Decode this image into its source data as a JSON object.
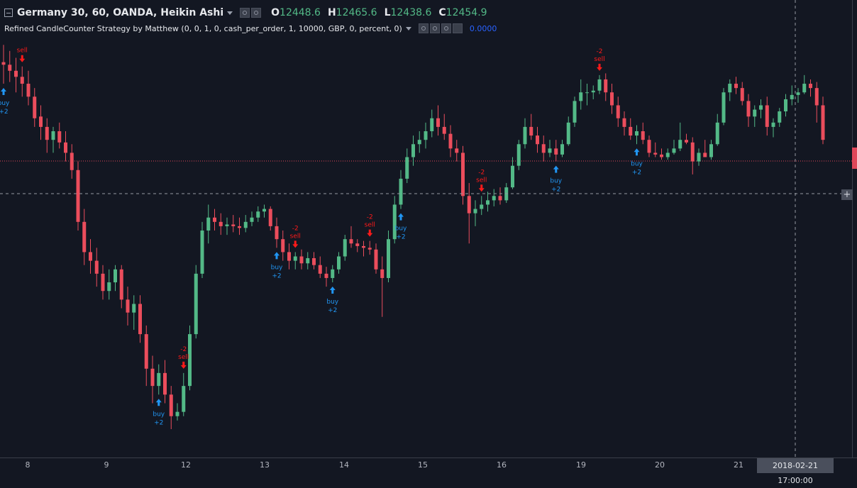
{
  "header": {
    "symbol": "Germany 30, 60, OANDA, Heikin Ashi",
    "ohlc": [
      {
        "key": "O",
        "value": "12448.6"
      },
      {
        "key": "H",
        "value": "12465.6"
      },
      {
        "key": "L",
        "value": "12438.6"
      },
      {
        "key": "C",
        "value": "12454.9"
      }
    ],
    "study_title": "Refined CandleCounter Strategy by Matthew (0, 0, 1, 0, cash_per_order, 1, 10000, GBP, 0, percent, 0)",
    "study_value": "0.0000"
  },
  "time_axis": {
    "ticks": [
      "8",
      "9",
      "12",
      "13",
      "14",
      "15",
      "16",
      "19",
      "20",
      "21"
    ],
    "cursor_label": "2018-02-21 17:00:00"
  },
  "colors": {
    "background": "#131722",
    "up": "#53b987",
    "down": "#eb4d5c",
    "buy_signal": "#2196f3",
    "sell_signal": "#ff1a1a",
    "current_price_line": "#e0475a"
  },
  "chart_data": {
    "type": "candlestick",
    "style": "Heikin Ashi",
    "ylim": [
      12010,
      12470
    ],
    "candles": [
      {
        "o": 12435,
        "h": 12455,
        "l": 12410,
        "c": 12432
      },
      {
        "o": 12432,
        "h": 12448,
        "l": 12412,
        "c": 12425
      },
      {
        "o": 12425,
        "h": 12440,
        "l": 12400,
        "c": 12418
      },
      {
        "o": 12418,
        "h": 12430,
        "l": 12395,
        "c": 12410
      },
      {
        "o": 12410,
        "h": 12425,
        "l": 12385,
        "c": 12395
      },
      {
        "o": 12395,
        "h": 12405,
        "l": 12360,
        "c": 12370
      },
      {
        "o": 12372,
        "h": 12385,
        "l": 12345,
        "c": 12360
      },
      {
        "o": 12360,
        "h": 12370,
        "l": 12330,
        "c": 12345
      },
      {
        "o": 12345,
        "h": 12360,
        "l": 12330,
        "c": 12355
      },
      {
        "o": 12355,
        "h": 12365,
        "l": 12335,
        "c": 12342
      },
      {
        "o": 12342,
        "h": 12355,
        "l": 12320,
        "c": 12330
      },
      {
        "o": 12330,
        "h": 12340,
        "l": 12300,
        "c": 12310
      },
      {
        "o": 12310,
        "h": 12320,
        "l": 12240,
        "c": 12250
      },
      {
        "o": 12250,
        "h": 12265,
        "l": 12200,
        "c": 12215
      },
      {
        "o": 12215,
        "h": 12230,
        "l": 12190,
        "c": 12205
      },
      {
        "o": 12205,
        "h": 12220,
        "l": 12175,
        "c": 12190
      },
      {
        "o": 12190,
        "h": 12200,
        "l": 12160,
        "c": 12170
      },
      {
        "o": 12170,
        "h": 12195,
        "l": 12160,
        "c": 12180
      },
      {
        "o": 12180,
        "h": 12200,
        "l": 12170,
        "c": 12195
      },
      {
        "o": 12195,
        "h": 12200,
        "l": 12150,
        "c": 12160
      },
      {
        "o": 12160,
        "h": 12175,
        "l": 12130,
        "c": 12145
      },
      {
        "o": 12145,
        "h": 12165,
        "l": 12125,
        "c": 12155
      },
      {
        "o": 12155,
        "h": 12165,
        "l": 12110,
        "c": 12120
      },
      {
        "o": 12120,
        "h": 12130,
        "l": 12060,
        "c": 12080
      },
      {
        "o": 12080,
        "h": 12095,
        "l": 12040,
        "c": 12060
      },
      {
        "o": 12060,
        "h": 12085,
        "l": 12050,
        "c": 12075
      },
      {
        "o": 12075,
        "h": 12090,
        "l": 12040,
        "c": 12050
      },
      {
        "o": 12050,
        "h": 12060,
        "l": 12010,
        "c": 12025
      },
      {
        "o": 12025,
        "h": 12040,
        "l": 12020,
        "c": 12030
      },
      {
        "o": 12030,
        "h": 12075,
        "l": 12025,
        "c": 12060
      },
      {
        "o": 12060,
        "h": 12130,
        "l": 12055,
        "c": 12120
      },
      {
        "o": 12120,
        "h": 12200,
        "l": 12115,
        "c": 12190
      },
      {
        "o": 12190,
        "h": 12250,
        "l": 12185,
        "c": 12240
      },
      {
        "o": 12240,
        "h": 12270,
        "l": 12225,
        "c": 12255
      },
      {
        "o": 12255,
        "h": 12265,
        "l": 12240,
        "c": 12250
      },
      {
        "o": 12250,
        "h": 12260,
        "l": 12235,
        "c": 12245
      },
      {
        "o": 12245,
        "h": 12255,
        "l": 12235,
        "c": 12247
      },
      {
        "o": 12247,
        "h": 12258,
        "l": 12238,
        "c": 12245
      },
      {
        "o": 12245,
        "h": 12255,
        "l": 12235,
        "c": 12243
      },
      {
        "o": 12243,
        "h": 12258,
        "l": 12238,
        "c": 12250
      },
      {
        "o": 12250,
        "h": 12262,
        "l": 12245,
        "c": 12255
      },
      {
        "o": 12255,
        "h": 12268,
        "l": 12250,
        "c": 12262
      },
      {
        "o": 12262,
        "h": 12270,
        "l": 12255,
        "c": 12265
      },
      {
        "o": 12265,
        "h": 12268,
        "l": 12240,
        "c": 12245
      },
      {
        "o": 12245,
        "h": 12255,
        "l": 12220,
        "c": 12230
      },
      {
        "o": 12230,
        "h": 12240,
        "l": 12205,
        "c": 12215
      },
      {
        "o": 12215,
        "h": 12225,
        "l": 12195,
        "c": 12205
      },
      {
        "o": 12205,
        "h": 12215,
        "l": 12195,
        "c": 12210
      },
      {
        "o": 12210,
        "h": 12218,
        "l": 12195,
        "c": 12202
      },
      {
        "o": 12202,
        "h": 12215,
        "l": 12195,
        "c": 12208
      },
      {
        "o": 12208,
        "h": 12215,
        "l": 12195,
        "c": 12200
      },
      {
        "o": 12200,
        "h": 12210,
        "l": 12185,
        "c": 12190
      },
      {
        "o": 12190,
        "h": 12198,
        "l": 12175,
        "c": 12185
      },
      {
        "o": 12185,
        "h": 12200,
        "l": 12180,
        "c": 12195
      },
      {
        "o": 12195,
        "h": 12215,
        "l": 12190,
        "c": 12210
      },
      {
        "o": 12210,
        "h": 12235,
        "l": 12205,
        "c": 12230
      },
      {
        "o": 12230,
        "h": 12245,
        "l": 12220,
        "c": 12225
      },
      {
        "o": 12225,
        "h": 12230,
        "l": 12215,
        "c": 12222
      },
      {
        "o": 12222,
        "h": 12228,
        "l": 12210,
        "c": 12220
      },
      {
        "o": 12220,
        "h": 12228,
        "l": 12212,
        "c": 12218
      },
      {
        "o": 12218,
        "h": 12225,
        "l": 12190,
        "c": 12195
      },
      {
        "o": 12195,
        "h": 12210,
        "l": 12140,
        "c": 12185
      },
      {
        "o": 12185,
        "h": 12240,
        "l": 12180,
        "c": 12230
      },
      {
        "o": 12230,
        "h": 12280,
        "l": 12225,
        "c": 12270
      },
      {
        "o": 12270,
        "h": 12310,
        "l": 12265,
        "c": 12300
      },
      {
        "o": 12300,
        "h": 12335,
        "l": 12295,
        "c": 12325
      },
      {
        "o": 12325,
        "h": 12350,
        "l": 12315,
        "c": 12340
      },
      {
        "o": 12340,
        "h": 12355,
        "l": 12330,
        "c": 12345
      },
      {
        "o": 12345,
        "h": 12365,
        "l": 12335,
        "c": 12355
      },
      {
        "o": 12355,
        "h": 12380,
        "l": 12348,
        "c": 12370
      },
      {
        "o": 12370,
        "h": 12385,
        "l": 12350,
        "c": 12360
      },
      {
        "o": 12360,
        "h": 12375,
        "l": 12345,
        "c": 12352
      },
      {
        "o": 12352,
        "h": 12362,
        "l": 12325,
        "c": 12335
      },
      {
        "o": 12335,
        "h": 12345,
        "l": 12320,
        "c": 12330
      },
      {
        "o": 12330,
        "h": 12338,
        "l": 12270,
        "c": 12280
      },
      {
        "o": 12280,
        "h": 12295,
        "l": 12225,
        "c": 12260
      },
      {
        "o": 12260,
        "h": 12275,
        "l": 12245,
        "c": 12265
      },
      {
        "o": 12265,
        "h": 12280,
        "l": 12258,
        "c": 12270
      },
      {
        "o": 12270,
        "h": 12285,
        "l": 12262,
        "c": 12275
      },
      {
        "o": 12275,
        "h": 12288,
        "l": 12268,
        "c": 12280
      },
      {
        "o": 12280,
        "h": 12290,
        "l": 12270,
        "c": 12275
      },
      {
        "o": 12275,
        "h": 12295,
        "l": 12272,
        "c": 12290
      },
      {
        "o": 12290,
        "h": 12325,
        "l": 12288,
        "c": 12315
      },
      {
        "o": 12315,
        "h": 12345,
        "l": 12310,
        "c": 12340
      },
      {
        "o": 12340,
        "h": 12370,
        "l": 12335,
        "c": 12360
      },
      {
        "o": 12360,
        "h": 12375,
        "l": 12345,
        "c": 12350
      },
      {
        "o": 12350,
        "h": 12360,
        "l": 12330,
        "c": 12340
      },
      {
        "o": 12340,
        "h": 12350,
        "l": 12320,
        "c": 12330
      },
      {
        "o": 12330,
        "h": 12345,
        "l": 12325,
        "c": 12335
      },
      {
        "o": 12335,
        "h": 12345,
        "l": 12320,
        "c": 12328
      },
      {
        "o": 12328,
        "h": 12345,
        "l": 12325,
        "c": 12340
      },
      {
        "o": 12340,
        "h": 12372,
        "l": 12338,
        "c": 12365
      },
      {
        "o": 12365,
        "h": 12395,
        "l": 12360,
        "c": 12390
      },
      {
        "o": 12390,
        "h": 12415,
        "l": 12380,
        "c": 12400
      },
      {
        "o": 12400,
        "h": 12410,
        "l": 12385,
        "c": 12400
      },
      {
        "o": 12400,
        "h": 12408,
        "l": 12392,
        "c": 12402
      },
      {
        "o": 12402,
        "h": 12420,
        "l": 12398,
        "c": 12415
      },
      {
        "o": 12415,
        "h": 12422,
        "l": 12390,
        "c": 12400
      },
      {
        "o": 12400,
        "h": 12410,
        "l": 12375,
        "c": 12385
      },
      {
        "o": 12385,
        "h": 12395,
        "l": 12360,
        "c": 12370
      },
      {
        "o": 12370,
        "h": 12378,
        "l": 12350,
        "c": 12360
      },
      {
        "o": 12360,
        "h": 12370,
        "l": 12345,
        "c": 12350
      },
      {
        "o": 12350,
        "h": 12362,
        "l": 12340,
        "c": 12355
      },
      {
        "o": 12355,
        "h": 12365,
        "l": 12340,
        "c": 12345
      },
      {
        "o": 12345,
        "h": 12350,
        "l": 12325,
        "c": 12330
      },
      {
        "o": 12330,
        "h": 12342,
        "l": 12325,
        "c": 12328
      },
      {
        "o": 12328,
        "h": 12335,
        "l": 12322,
        "c": 12325
      },
      {
        "o": 12325,
        "h": 12335,
        "l": 12322,
        "c": 12330
      },
      {
        "o": 12330,
        "h": 12345,
        "l": 12328,
        "c": 12335
      },
      {
        "o": 12335,
        "h": 12365,
        "l": 12332,
        "c": 12345
      },
      {
        "o": 12345,
        "h": 12352,
        "l": 12340,
        "c": 12342
      },
      {
        "o": 12342,
        "h": 12348,
        "l": 12305,
        "c": 12320
      },
      {
        "o": 12320,
        "h": 12335,
        "l": 12315,
        "c": 12330
      },
      {
        "o": 12330,
        "h": 12345,
        "l": 12325,
        "c": 12325
      },
      {
        "o": 12325,
        "h": 12345,
        "l": 12322,
        "c": 12340
      },
      {
        "o": 12340,
        "h": 12375,
        "l": 12338,
        "c": 12365
      },
      {
        "o": 12365,
        "h": 12405,
        "l": 12362,
        "c": 12400
      },
      {
        "o": 12400,
        "h": 12415,
        "l": 12390,
        "c": 12410
      },
      {
        "o": 12410,
        "h": 12418,
        "l": 12398,
        "c": 12405
      },
      {
        "o": 12405,
        "h": 12412,
        "l": 12385,
        "c": 12390
      },
      {
        "o": 12390,
        "h": 12398,
        "l": 12360,
        "c": 12372
      },
      {
        "o": 12372,
        "h": 12385,
        "l": 12360,
        "c": 12380
      },
      {
        "o": 12380,
        "h": 12392,
        "l": 12370,
        "c": 12385
      },
      {
        "o": 12385,
        "h": 12395,
        "l": 12350,
        "c": 12360
      },
      {
        "o": 12360,
        "h": 12370,
        "l": 12348,
        "c": 12365
      },
      {
        "o": 12365,
        "h": 12382,
        "l": 12360,
        "c": 12378
      },
      {
        "o": 12378,
        "h": 12398,
        "l": 12372,
        "c": 12392
      },
      {
        "o": 12392,
        "h": 12408,
        "l": 12385,
        "c": 12397
      },
      {
        "o": 12397,
        "h": 12405,
        "l": 12388,
        "c": 12400
      },
      {
        "o": 12400,
        "h": 12420,
        "l": 12398,
        "c": 12410
      },
      {
        "o": 12410,
        "h": 12415,
        "l": 12395,
        "c": 12405
      },
      {
        "o": 12405,
        "h": 12412,
        "l": 12365,
        "c": 12385
      },
      {
        "o": 12385,
        "h": 12395,
        "l": 12340,
        "c": 12345
      }
    ],
    "signals": [
      {
        "type": "buy",
        "label": "buy",
        "qty": "+2",
        "index": 0
      },
      {
        "type": "sell",
        "label": "sell",
        "qty": "",
        "index": 3
      },
      {
        "type": "sell",
        "label": "sell",
        "qty": "-2",
        "index": 29
      },
      {
        "type": "buy",
        "label": "buy",
        "qty": "+2",
        "index": 25
      },
      {
        "type": "buy",
        "label": "buy",
        "qty": "+2",
        "index": 44
      },
      {
        "type": "sell",
        "label": "sell",
        "qty": "-2",
        "index": 47
      },
      {
        "type": "buy",
        "label": "buy",
        "qty": "+2",
        "index": 53
      },
      {
        "type": "sell",
        "label": "sell",
        "qty": "-2",
        "index": 59
      },
      {
        "type": "buy",
        "label": "buy",
        "qty": "+2",
        "index": 64
      },
      {
        "type": "sell",
        "label": "sell",
        "qty": "-2",
        "index": 77
      },
      {
        "type": "buy",
        "label": "buy",
        "qty": "+2",
        "index": 89
      },
      {
        "type": "sell",
        "label": "sell",
        "qty": "-2",
        "index": 96
      },
      {
        "type": "buy",
        "label": "buy",
        "qty": "+2",
        "index": 102
      }
    ]
  }
}
